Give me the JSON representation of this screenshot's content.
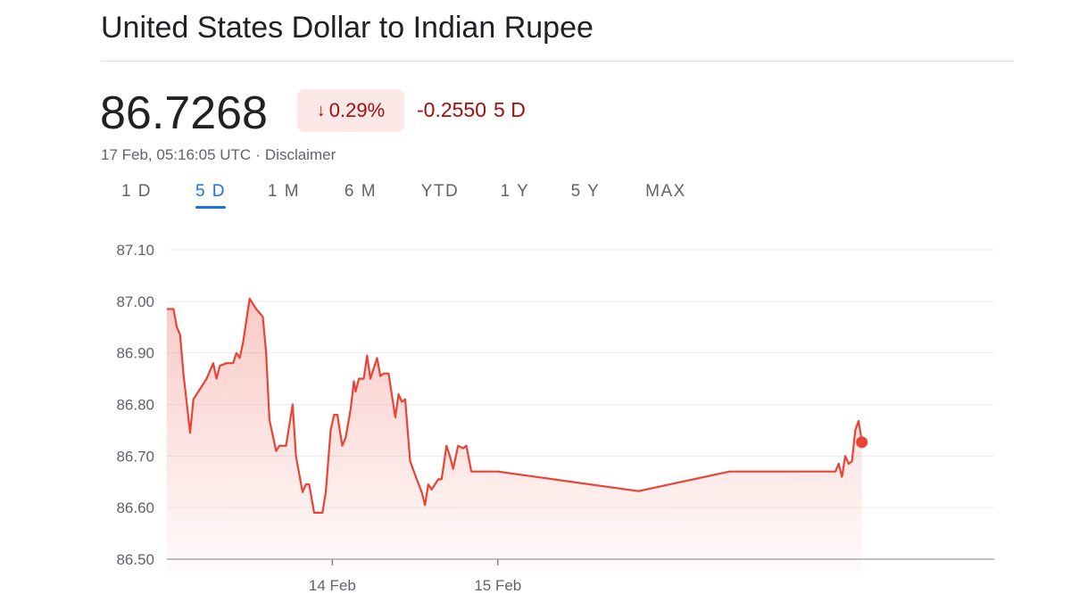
{
  "header": {
    "title": "United States Dollar to Indian Rupee"
  },
  "quote": {
    "price": "86.7268",
    "badge_arrow": "↓",
    "badge_percent": "0.29%",
    "change_value": "-0.2550",
    "change_period": "5 D",
    "timestamp": "17 Feb, 05:16:05 UTC",
    "separator": "·",
    "disclaimer": "Disclaimer",
    "down_color": "#a50e0e",
    "badge_bg": "#fce8e6"
  },
  "tabs": [
    {
      "label": "1 D",
      "active": false
    },
    {
      "label": "5 D",
      "active": true
    },
    {
      "label": "1 M",
      "active": false
    },
    {
      "label": "6 M",
      "active": false
    },
    {
      "label": "YTD",
      "active": false
    },
    {
      "label": "1 Y",
      "active": false
    },
    {
      "label": "5 Y",
      "active": false
    },
    {
      "label": "MAX",
      "active": false
    }
  ],
  "chart_data": {
    "type": "area",
    "title": "",
    "xlabel": "",
    "ylabel": "",
    "ylim": [
      86.5,
      87.1
    ],
    "yticks": [
      "87.10",
      "87.00",
      "86.90",
      "86.80",
      "86.70",
      "86.60",
      "86.50"
    ],
    "xtick_labels": [
      {
        "label": "14 Feb",
        "x": 1.0
      },
      {
        "label": "15 Feb",
        "x": 2.0
      }
    ],
    "xlim": [
      0,
      5.0
    ],
    "grid": true,
    "line_color": "#ea4335",
    "series": [
      {
        "name": "",
        "points": [
          [
            0.0,
            86.985
          ],
          [
            0.04,
            86.985
          ],
          [
            0.06,
            86.95
          ],
          [
            0.08,
            86.935
          ],
          [
            0.1,
            86.86
          ],
          [
            0.14,
            86.745
          ],
          [
            0.16,
            86.81
          ],
          [
            0.2,
            86.83
          ],
          [
            0.24,
            86.85
          ],
          [
            0.28,
            86.88
          ],
          [
            0.3,
            86.85
          ],
          [
            0.32,
            86.875
          ],
          [
            0.36,
            86.88
          ],
          [
            0.4,
            86.88
          ],
          [
            0.42,
            86.9
          ],
          [
            0.44,
            86.89
          ],
          [
            0.46,
            86.92
          ],
          [
            0.5,
            87.005
          ],
          [
            0.54,
            86.985
          ],
          [
            0.58,
            86.97
          ],
          [
            0.6,
            86.9
          ],
          [
            0.62,
            86.77
          ],
          [
            0.66,
            86.71
          ],
          [
            0.68,
            86.72
          ],
          [
            0.72,
            86.72
          ],
          [
            0.76,
            86.8
          ],
          [
            0.78,
            86.7
          ],
          [
            0.82,
            86.63
          ],
          [
            0.84,
            86.645
          ],
          [
            0.86,
            86.645
          ],
          [
            0.89,
            86.59
          ],
          [
            0.94,
            86.59
          ],
          [
            0.96,
            86.63
          ],
          [
            0.99,
            86.75
          ],
          [
            1.01,
            86.78
          ],
          [
            1.03,
            86.78
          ],
          [
            1.06,
            86.72
          ],
          [
            1.08,
            86.735
          ],
          [
            1.11,
            86.79
          ],
          [
            1.13,
            86.845
          ],
          [
            1.14,
            86.825
          ],
          [
            1.16,
            86.85
          ],
          [
            1.19,
            86.85
          ],
          [
            1.21,
            86.895
          ],
          [
            1.23,
            86.85
          ],
          [
            1.27,
            86.89
          ],
          [
            1.29,
            86.855
          ],
          [
            1.31,
            86.86
          ],
          [
            1.34,
            86.86
          ],
          [
            1.38,
            86.775
          ],
          [
            1.4,
            86.82
          ],
          [
            1.42,
            86.805
          ],
          [
            1.44,
            86.81
          ],
          [
            1.47,
            86.69
          ],
          [
            1.51,
            86.655
          ],
          [
            1.54,
            86.63
          ],
          [
            1.56,
            86.605
          ],
          [
            1.58,
            86.645
          ],
          [
            1.6,
            86.635
          ],
          [
            1.64,
            86.655
          ],
          [
            1.66,
            86.655
          ],
          [
            1.69,
            86.72
          ],
          [
            1.71,
            86.7
          ],
          [
            1.73,
            86.675
          ],
          [
            1.76,
            86.72
          ],
          [
            1.79,
            86.715
          ],
          [
            1.81,
            86.72
          ],
          [
            1.84,
            86.67
          ],
          [
            1.9,
            86.67
          ],
          [
            2.0,
            86.67
          ],
          [
            2.85,
            86.632
          ],
          [
            3.4,
            86.67
          ],
          [
            4.04,
            86.67
          ],
          [
            4.06,
            86.685
          ],
          [
            4.08,
            86.66
          ],
          [
            4.1,
            86.7
          ],
          [
            4.12,
            86.685
          ],
          [
            4.14,
            86.69
          ],
          [
            4.16,
            86.75
          ],
          [
            4.18,
            86.768
          ],
          [
            4.2,
            86.728
          ]
        ]
      }
    ],
    "last_value": 86.7268
  }
}
